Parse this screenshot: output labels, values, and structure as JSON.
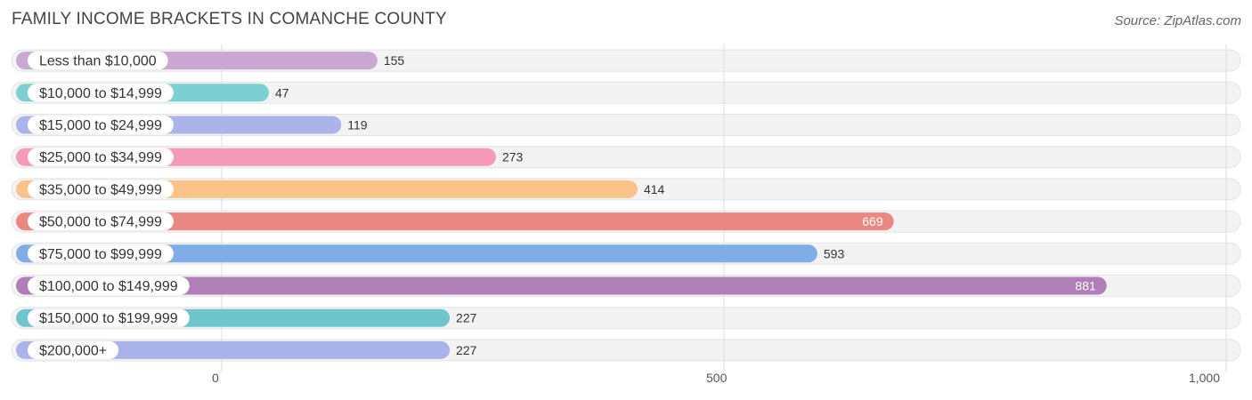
{
  "title": "FAMILY INCOME BRACKETS IN COMANCHE COUNTY",
  "source": "Source: ZipAtlas.com",
  "chart_data": {
    "type": "bar",
    "orientation": "horizontal",
    "title": "FAMILY INCOME BRACKETS IN COMANCHE COUNTY",
    "categories": [
      "Less than $10,000",
      "$10,000 to $14,999",
      "$15,000 to $24,999",
      "$25,000 to $34,999",
      "$35,000 to $49,999",
      "$50,000 to $74,999",
      "$75,000 to $99,999",
      "$100,000 to $149,999",
      "$150,000 to $199,999",
      "$200,000+"
    ],
    "values": [
      155,
      47,
      119,
      273,
      414,
      669,
      593,
      881,
      227,
      227
    ],
    "value_labels": [
      "155",
      "47",
      "119",
      "273",
      "414",
      "669",
      "593",
      "881",
      "227",
      "227"
    ],
    "colors": [
      "#c9a8d2",
      "#7ccfd3",
      "#aab4ea",
      "#f59ab8",
      "#fbc289",
      "#ea8780",
      "#7eaee5",
      "#b07fb8",
      "#6ec6cc",
      "#aab4ea"
    ],
    "inside_label_values": [
      669,
      881
    ],
    "xlim": [
      0,
      1000
    ],
    "xticks": [
      0,
      500,
      1000
    ],
    "xtick_labels": [
      "0",
      "500",
      "1,000"
    ],
    "grid": true
  }
}
